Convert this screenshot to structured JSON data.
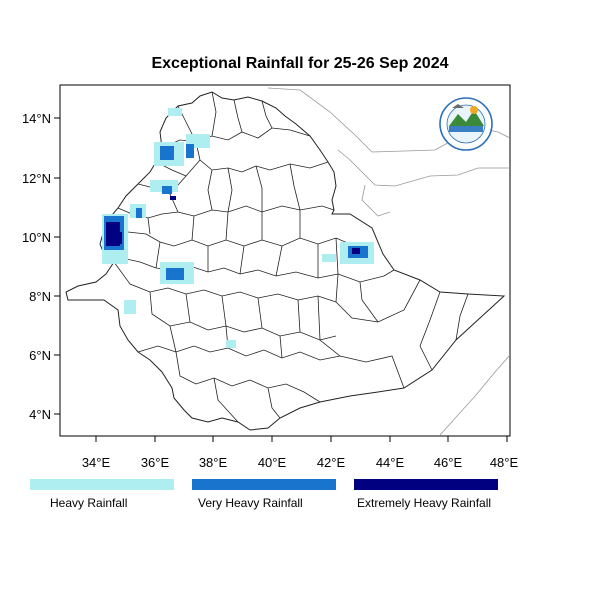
{
  "title": "Exceptional Rainfall for 25-26 Sep 2024",
  "axes": {
    "x_ticks": [
      "34°E",
      "36°E",
      "38°E",
      "40°E",
      "42°E",
      "44°E",
      "46°E",
      "48°E"
    ],
    "y_ticks": [
      "14°N",
      "12°N",
      "10°N",
      "8°N",
      "6°N",
      "4°N"
    ]
  },
  "colors": {
    "heavy": "#aeeef0",
    "very_heavy": "#1874cd",
    "extremely_heavy": "#000080",
    "boundary": "#222222",
    "neighbor": "#999999"
  },
  "legend": [
    {
      "label": "Heavy Rainfall",
      "color": "#aeeef0"
    },
    {
      "label": "Very Heavy Rainfall",
      "color": "#1874cd"
    },
    {
      "label": "Extremely Heavy Rainfall",
      "color": "#000080"
    }
  ],
  "logo": {
    "icon": "meteorology-institute-logo"
  }
}
